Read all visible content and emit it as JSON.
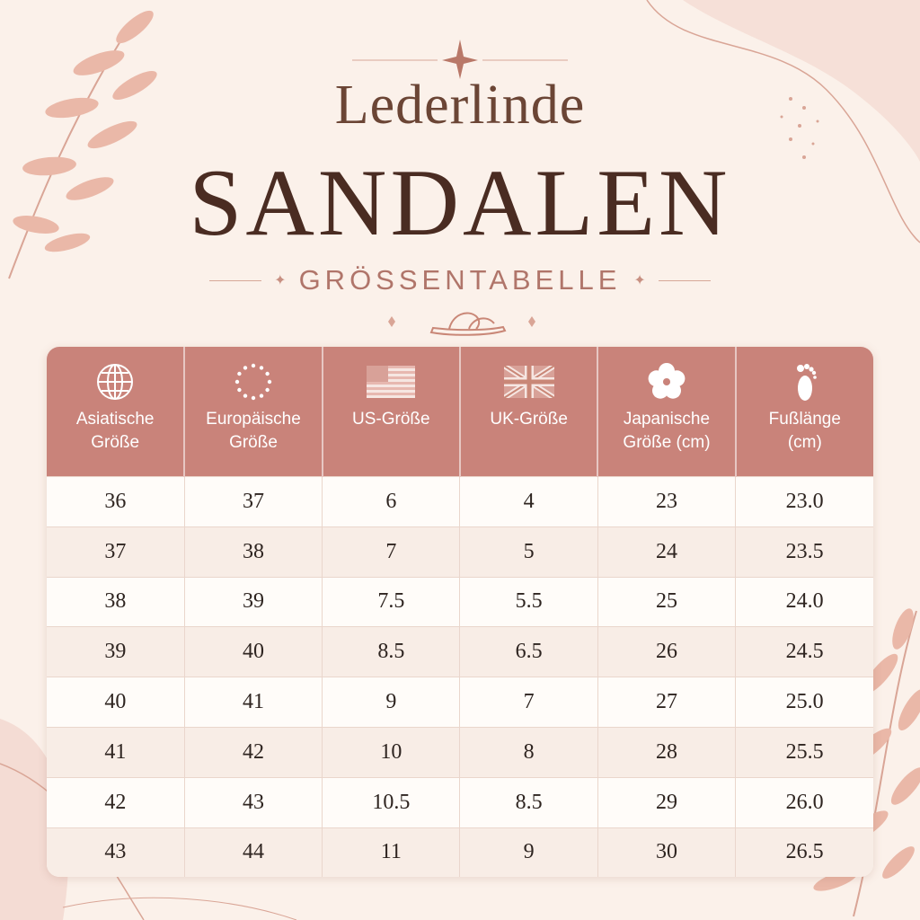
{
  "brand": "Lederlinde",
  "title": "SANDALEN",
  "subtitle": "GRÖSSENTABELLE",
  "colors": {
    "header_bg": "#c9837a",
    "title": "#4a2c22",
    "accent": "#b0756a",
    "background": "#fbf1ea"
  },
  "table": {
    "headers": [
      {
        "icon": "globe-icon",
        "line1": "Asiatische",
        "line2": "Größe"
      },
      {
        "icon": "eu-stars-icon",
        "line1": "Europäische",
        "line2": "Größe"
      },
      {
        "icon": "us-flag-icon",
        "line1": "US-Größe",
        "line2": ""
      },
      {
        "icon": "uk-flag-icon",
        "line1": "UK-Größe",
        "line2": ""
      },
      {
        "icon": "cherry-blossom-icon",
        "line1": "Japanische",
        "line2": "Größe (cm)"
      },
      {
        "icon": "footprint-icon",
        "line1": "Fußlänge",
        "line2": "(cm)"
      }
    ],
    "rows": [
      [
        "36",
        "37",
        "6",
        "4",
        "23",
        "23.0"
      ],
      [
        "37",
        "38",
        "7",
        "5",
        "24",
        "23.5"
      ],
      [
        "38",
        "39",
        "7.5",
        "5.5",
        "25",
        "24.0"
      ],
      [
        "39",
        "40",
        "8.5",
        "6.5",
        "26",
        "24.5"
      ],
      [
        "40",
        "41",
        "9",
        "7",
        "27",
        "25.0"
      ],
      [
        "41",
        "42",
        "10",
        "8",
        "28",
        "25.5"
      ],
      [
        "42",
        "43",
        "10.5",
        "8.5",
        "29",
        "26.0"
      ],
      [
        "43",
        "44",
        "11",
        "9",
        "30",
        "26.5"
      ]
    ]
  }
}
